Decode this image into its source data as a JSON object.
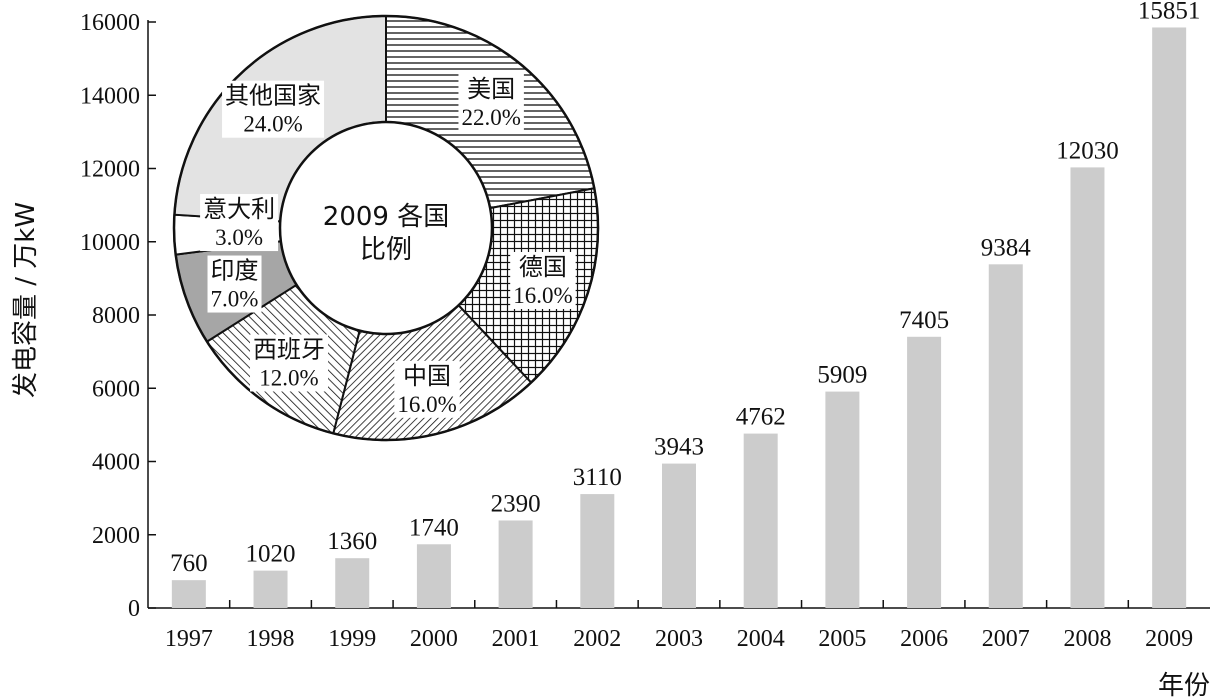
{
  "chart_data": [
    {
      "type": "bar",
      "ylabel": "发电容量 / 万kW",
      "xlabel": "年份",
      "ylim": [
        0,
        16000
      ],
      "yticks": [
        0,
        2000,
        4000,
        6000,
        8000,
        10000,
        12000,
        14000,
        16000
      ],
      "categories": [
        "1997",
        "1998",
        "1999",
        "2000",
        "2001",
        "2002",
        "2003",
        "2004",
        "2005",
        "2006",
        "2007",
        "2008",
        "2009"
      ],
      "values": [
        760,
        1020,
        1360,
        1740,
        2390,
        3110,
        3943,
        4762,
        5909,
        7405,
        9384,
        12030,
        15851
      ],
      "bar_color": "#cccccc",
      "grid": false
    },
    {
      "type": "pie",
      "variant": "donut",
      "center_label_line1": "2009 各国",
      "center_label_line2": "比例",
      "slices": [
        {
          "label": "美国",
          "pct_text": "22.0%",
          "value": 22.0,
          "pattern": "hlines"
        },
        {
          "label": "德国",
          "pct_text": "16.0%",
          "value": 16.0,
          "pattern": "grid"
        },
        {
          "label": "中国",
          "pct_text": "16.0%",
          "value": 16.0,
          "pattern": "diag-dense"
        },
        {
          "label": "西班牙",
          "pct_text": "12.0%",
          "value": 12.0,
          "pattern": "diag-back"
        },
        {
          "label": "印度",
          "pct_text": "7.0%",
          "value": 7.0,
          "pattern": "gray"
        },
        {
          "label": "意大利",
          "pct_text": "3.0%",
          "value": 3.0,
          "pattern": "white"
        },
        {
          "label": "其他国家",
          "pct_text": "24.0%",
          "value": 24.0,
          "pattern": "lightgray"
        }
      ]
    }
  ]
}
